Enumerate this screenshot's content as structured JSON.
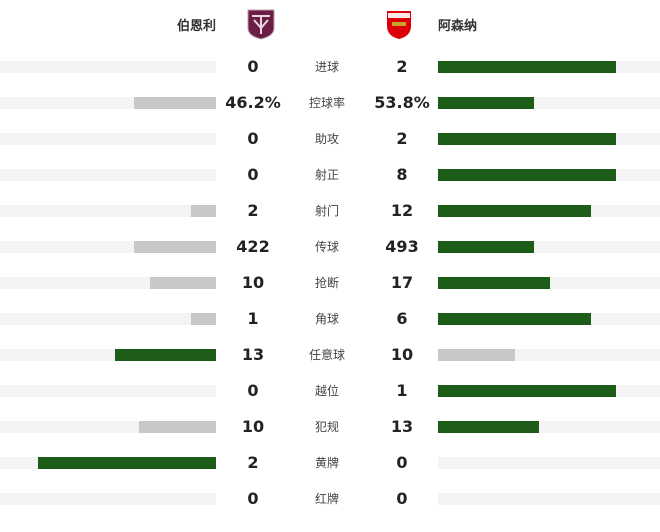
{
  "home": {
    "name": "伯恩利",
    "logo_icon": "burnley-crest-icon",
    "logo_color": "#6c1d45"
  },
  "away": {
    "name": "阿森纳",
    "logo_icon": "arsenal-crest-icon",
    "logo_color": "#db0007"
  },
  "colors": {
    "leader": "#1e5c1a",
    "trailer": "#c8c8c8",
    "track": "#f4f4f4"
  },
  "stats": [
    {
      "label": "进球",
      "home": "0",
      "away": "2",
      "home_num": 0,
      "away_num": 2
    },
    {
      "label": "控球率",
      "home": "46.2%",
      "away": "53.8%",
      "home_num": 46.2,
      "away_num": 53.8
    },
    {
      "label": "助攻",
      "home": "0",
      "away": "2",
      "home_num": 0,
      "away_num": 2
    },
    {
      "label": "射正",
      "home": "0",
      "away": "8",
      "home_num": 0,
      "away_num": 8
    },
    {
      "label": "射门",
      "home": "2",
      "away": "12",
      "home_num": 2,
      "away_num": 12
    },
    {
      "label": "传球",
      "home": "422",
      "away": "493",
      "home_num": 422,
      "away_num": 493
    },
    {
      "label": "抢断",
      "home": "10",
      "away": "17",
      "home_num": 10,
      "away_num": 17
    },
    {
      "label": "角球",
      "home": "1",
      "away": "6",
      "home_num": 1,
      "away_num": 6
    },
    {
      "label": "任意球",
      "home": "13",
      "away": "10",
      "home_num": 13,
      "away_num": 10
    },
    {
      "label": "越位",
      "home": "0",
      "away": "1",
      "home_num": 0,
      "away_num": 1
    },
    {
      "label": "犯规",
      "home": "10",
      "away": "13",
      "home_num": 10,
      "away_num": 13
    },
    {
      "label": "黄牌",
      "home": "2",
      "away": "0",
      "home_num": 2,
      "away_num": 0
    },
    {
      "label": "红牌",
      "home": "0",
      "away": "0",
      "home_num": 0,
      "away_num": 0
    }
  ]
}
